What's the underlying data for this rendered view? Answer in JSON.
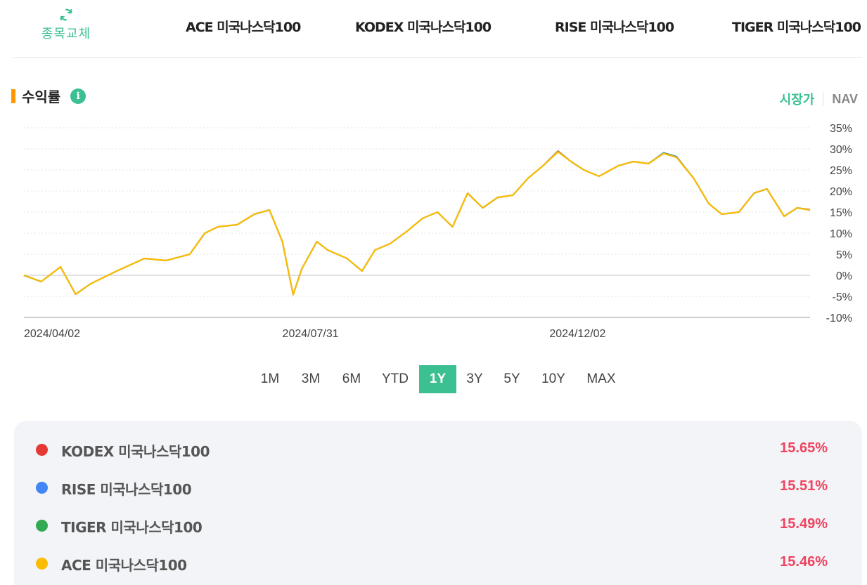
{
  "header": {
    "swap_label": "종목교체",
    "fund_tabs": [
      "ACE 미국나스닥100",
      "KODEX 미국나스닥100",
      "RISE 미국나스닥100",
      "TIGER 미국나스닥100"
    ]
  },
  "section": {
    "title": "수익률",
    "info_icon": "i",
    "toggle": {
      "active": "시장가",
      "inactive": "NAV"
    }
  },
  "chart_data": {
    "type": "line",
    "yticks": [
      "35%",
      "30%",
      "25%",
      "20%",
      "15%",
      "10%",
      "5%",
      "0%",
      "-5%",
      "-10%"
    ],
    "ylim": [
      -10,
      35
    ],
    "x_tick_labels": [
      "2024/04/02",
      "2024/07/31",
      "2024/12/02"
    ],
    "xlim": [
      "2024/04/02",
      "2025/04/02"
    ],
    "grid": true,
    "series": [
      {
        "name": "KODEX 미국나스닥100",
        "color": "#e53935",
        "x": [
          "2024/04/02",
          "2024/04/10",
          "2024/04/19",
          "2024/04/26",
          "2024/05/03",
          "2024/05/15",
          "2024/05/28",
          "2024/06/07",
          "2024/06/18",
          "2024/06/25",
          "2024/07/01",
          "2024/07/10",
          "2024/07/18",
          "2024/07/25",
          "2024/07/31",
          "2024/08/05",
          "2024/08/09",
          "2024/08/16",
          "2024/08/21",
          "2024/08/30",
          "2024/09/06",
          "2024/09/12",
          "2024/09/19",
          "2024/09/27",
          "2024/10/04",
          "2024/10/11",
          "2024/10/18",
          "2024/10/25",
          "2024/11/01",
          "2024/11/08",
          "2024/11/15",
          "2024/11/22",
          "2024/11/29",
          "2024/12/06",
          "2024/12/12",
          "2024/12/18",
          "2024/12/25",
          "2025/01/03",
          "2025/01/10",
          "2025/01/17",
          "2025/01/24",
          "2025/01/30",
          "2025/02/07",
          "2025/02/14",
          "2025/02/20",
          "2025/02/28",
          "2025/03/07",
          "2025/03/13",
          "2025/03/21",
          "2025/03/27",
          "2025/04/02"
        ],
        "y": [
          0.0,
          -1.5,
          2.0,
          -4.5,
          -2.0,
          1.0,
          4.0,
          3.5,
          5.0,
          10.0,
          11.5,
          12.0,
          14.5,
          15.5,
          8.0,
          -4.6,
          1.5,
          8.0,
          6.0,
          4.0,
          1.0,
          6.0,
          7.5,
          10.5,
          13.5,
          15.0,
          11.5,
          19.5,
          16.0,
          18.5,
          19.0,
          23.0,
          26.0,
          29.5,
          27.0,
          25.0,
          23.5,
          26.0,
          27.0,
          26.5,
          29.0,
          28.0,
          23.0,
          17.0,
          14.5,
          15.0,
          19.5,
          20.5,
          14.0,
          16.0,
          15.6
        ]
      },
      {
        "name": "RISE 미국나스닥100",
        "color": "#4285f4",
        "x": [
          "2024/04/02",
          "2024/04/10",
          "2024/04/19",
          "2024/04/26",
          "2024/05/03",
          "2024/05/15",
          "2024/05/28",
          "2024/06/07",
          "2024/06/18",
          "2024/06/25",
          "2024/07/01",
          "2024/07/10",
          "2024/07/18",
          "2024/07/25",
          "2024/07/31",
          "2024/08/05",
          "2024/08/09",
          "2024/08/16",
          "2024/08/21",
          "2024/08/30",
          "2024/09/06",
          "2024/09/12",
          "2024/09/19",
          "2024/09/27",
          "2024/10/04",
          "2024/10/11",
          "2024/10/18",
          "2024/10/25",
          "2024/11/01",
          "2024/11/08",
          "2024/11/15",
          "2024/11/22",
          "2024/11/29",
          "2024/12/06",
          "2024/12/12",
          "2024/12/18",
          "2024/12/25",
          "2025/01/03",
          "2025/01/10",
          "2025/01/17",
          "2025/01/24",
          "2025/01/30",
          "2025/02/07",
          "2025/02/14",
          "2025/02/20",
          "2025/02/28",
          "2025/03/07",
          "2025/03/13",
          "2025/03/21",
          "2025/03/27",
          "2025/04/02"
        ],
        "y": [
          0.0,
          -1.5,
          2.0,
          -4.5,
          -2.0,
          1.0,
          4.0,
          3.5,
          5.0,
          10.0,
          11.5,
          12.0,
          14.5,
          15.5,
          8.0,
          -4.6,
          1.5,
          8.0,
          6.0,
          4.0,
          1.0,
          6.0,
          7.5,
          10.5,
          13.5,
          15.0,
          11.5,
          19.5,
          16.0,
          18.5,
          19.0,
          23.0,
          26.0,
          29.4,
          27.0,
          25.0,
          23.5,
          26.0,
          27.0,
          26.5,
          29.1,
          28.2,
          23.0,
          17.0,
          14.5,
          15.0,
          19.5,
          20.5,
          14.0,
          16.0,
          15.5
        ]
      },
      {
        "name": "TIGER 미국나스닥100",
        "color": "#34a853",
        "x": [
          "2024/04/02",
          "2024/04/10",
          "2024/04/19",
          "2024/04/26",
          "2024/05/03",
          "2024/05/15",
          "2024/05/28",
          "2024/06/07",
          "2024/06/18",
          "2024/06/25",
          "2024/07/01",
          "2024/07/10",
          "2024/07/18",
          "2024/07/25",
          "2024/07/31",
          "2024/08/05",
          "2024/08/09",
          "2024/08/16",
          "2024/08/21",
          "2024/08/30",
          "2024/09/06",
          "2024/09/12",
          "2024/09/19",
          "2024/09/27",
          "2024/10/04",
          "2024/10/11",
          "2024/10/18",
          "2024/10/25",
          "2024/11/01",
          "2024/11/08",
          "2024/11/15",
          "2024/11/22",
          "2024/11/29",
          "2024/12/06",
          "2024/12/12",
          "2024/12/18",
          "2024/12/25",
          "2025/01/03",
          "2025/01/10",
          "2025/01/17",
          "2025/01/24",
          "2025/01/30",
          "2025/02/07",
          "2025/02/14",
          "2025/02/20",
          "2025/02/28",
          "2025/03/07",
          "2025/03/13",
          "2025/03/21",
          "2025/03/27",
          "2025/04/02"
        ],
        "y": [
          0.0,
          -1.5,
          2.0,
          -4.5,
          -2.0,
          1.0,
          4.0,
          3.5,
          5.0,
          10.0,
          11.5,
          12.0,
          14.5,
          15.5,
          8.0,
          -4.6,
          1.5,
          8.0,
          6.0,
          4.0,
          1.0,
          6.0,
          7.5,
          10.5,
          13.5,
          15.0,
          11.5,
          19.5,
          16.0,
          18.5,
          19.0,
          23.0,
          26.0,
          29.4,
          27.0,
          25.0,
          23.5,
          26.0,
          27.0,
          26.5,
          29.0,
          28.1,
          23.0,
          17.0,
          14.5,
          15.0,
          19.5,
          20.5,
          14.0,
          16.0,
          15.5
        ]
      },
      {
        "name": "ACE 미국나스닥100",
        "color": "#fbbc04",
        "x": [
          "2024/04/02",
          "2024/04/10",
          "2024/04/19",
          "2024/04/26",
          "2024/05/03",
          "2024/05/15",
          "2024/05/28",
          "2024/06/07",
          "2024/06/18",
          "2024/06/25",
          "2024/07/01",
          "2024/07/10",
          "2024/07/18",
          "2024/07/25",
          "2024/07/31",
          "2024/08/05",
          "2024/08/09",
          "2024/08/16",
          "2024/08/21",
          "2024/08/30",
          "2024/09/06",
          "2024/09/12",
          "2024/09/19",
          "2024/09/27",
          "2024/10/04",
          "2024/10/11",
          "2024/10/18",
          "2024/10/25",
          "2024/11/01",
          "2024/11/08",
          "2024/11/15",
          "2024/11/22",
          "2024/11/29",
          "2024/12/06",
          "2024/12/12",
          "2024/12/18",
          "2024/12/25",
          "2025/01/03",
          "2025/01/10",
          "2025/01/17",
          "2025/01/24",
          "2025/01/30",
          "2025/02/07",
          "2025/02/14",
          "2025/02/20",
          "2025/02/28",
          "2025/03/07",
          "2025/03/13",
          "2025/03/21",
          "2025/03/27",
          "2025/04/02"
        ],
        "y": [
          0.0,
          -1.5,
          2.0,
          -4.5,
          -2.0,
          1.0,
          4.0,
          3.5,
          5.0,
          10.0,
          11.5,
          12.0,
          14.5,
          15.5,
          8.0,
          -4.6,
          1.5,
          8.0,
          6.0,
          4.0,
          1.0,
          6.0,
          7.5,
          10.5,
          13.5,
          15.0,
          11.5,
          19.5,
          16.0,
          18.5,
          19.0,
          23.0,
          26.0,
          29.3,
          27.0,
          25.0,
          23.5,
          26.0,
          27.0,
          26.5,
          28.9,
          28.0,
          23.0,
          17.0,
          14.5,
          15.0,
          19.5,
          20.5,
          14.0,
          16.0,
          15.46
        ]
      }
    ]
  },
  "periods": [
    "1M",
    "3M",
    "6M",
    "YTD",
    "1Y",
    "3Y",
    "5Y",
    "10Y",
    "MAX"
  ],
  "active_period": "1Y",
  "legend": [
    {
      "name": "KODEX 미국나스닥100",
      "value": "15.65%",
      "color": "#e53935"
    },
    {
      "name": "RISE 미국나스닥100",
      "value": "15.51%",
      "color": "#4285f4"
    },
    {
      "name": "TIGER 미국나스닥100",
      "value": "15.49%",
      "color": "#34a853"
    },
    {
      "name": "ACE 미국나스닥100",
      "value": "15.46%",
      "color": "#fbbc04"
    }
  ]
}
